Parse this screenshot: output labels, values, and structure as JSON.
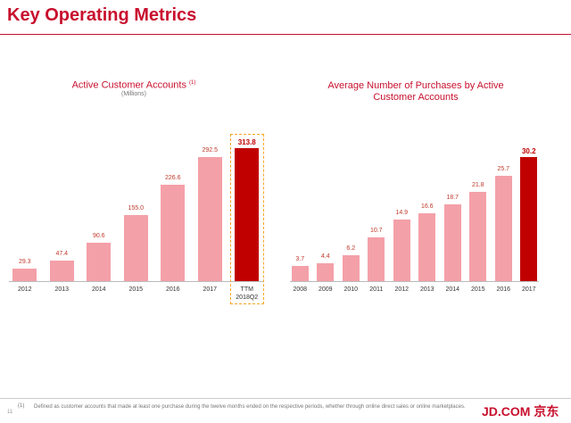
{
  "title": "Key Operating Metrics",
  "chart_data": [
    {
      "type": "bar",
      "title": "Active Customer Accounts",
      "title_note": "(1)",
      "subtitle": "(Millions)",
      "categories": [
        "2012",
        "2013",
        "2014",
        "2015",
        "2016",
        "2017",
        "TTM 2018Q2"
      ],
      "values": [
        29.3,
        47.4,
        90.6,
        155.0,
        226.6,
        292.5,
        313.8
      ],
      "value_labels": [
        "29.3",
        "47.4",
        "90.6",
        "155.0",
        "226.6",
        "292.5",
        "313.8"
      ],
      "colors": [
        "#f4a0a8",
        "#f4a0a8",
        "#f4a0a8",
        "#f4a0a8",
        "#f4a0a8",
        "#f4a0a8",
        "#c00000"
      ],
      "label_color": "#c0392b",
      "outline_last": true
    },
    {
      "type": "bar",
      "title": "Average Number of Purchases by Active Customer Accounts",
      "categories": [
        "2008",
        "2009",
        "2010",
        "2011",
        "2012",
        "2013",
        "2014",
        "2015",
        "2016",
        "2017"
      ],
      "values": [
        3.7,
        4.4,
        6.2,
        10.7,
        14.9,
        16.6,
        18.7,
        21.8,
        25.7,
        30.2
      ],
      "colors": [
        "#f4a0a8",
        "#f4a0a8",
        "#f4a0a8",
        "#f4a0a8",
        "#f4a0a8",
        "#f4a0a8",
        "#f4a0a8",
        "#f4a0a8",
        "#f4a0a8",
        "#c00000"
      ],
      "label_color": "#c0392b",
      "outline_last": false
    }
  ],
  "footnote": {
    "marker": "(1)",
    "text": "Defined as customer accounts that made at least one purchase during the twelve months ended on the respective periods, whether through online direct sales or online marketplaces."
  },
  "page_number": "11",
  "logo": "JD.COM 京东"
}
